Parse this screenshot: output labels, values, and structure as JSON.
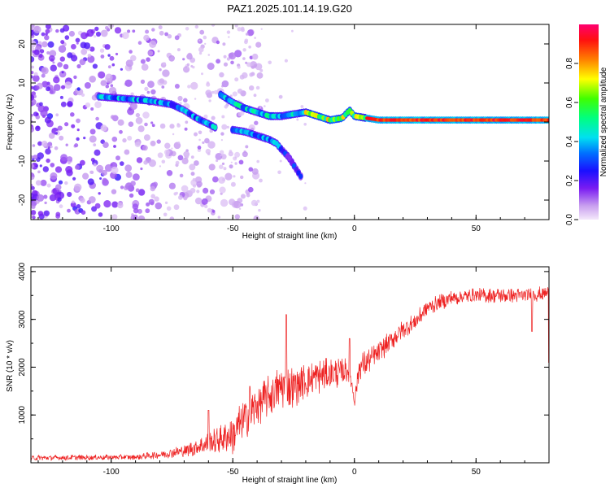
{
  "title": "PAZ1.2025.101.14.19.G20",
  "chart_data": [
    {
      "type": "heatmap",
      "xlabel": "Height of straight line (km)",
      "ylabel": "Frequency (Hz)",
      "xlim": [
        -133,
        80
      ],
      "ylim": [
        -25,
        25
      ],
      "xticks": [
        "-100",
        "-50",
        "0",
        "50"
      ],
      "xtick_values": [
        -100,
        -50,
        0,
        50
      ],
      "yticks": [
        "20",
        "10",
        "0",
        "-10",
        "-20"
      ],
      "ytick_values": [
        20,
        10,
        0,
        -10,
        -20
      ],
      "colorbar": {
        "label": "Normalized spectral amplitude",
        "range": [
          0,
          1
        ],
        "ticks": [
          "0.0",
          "0.2",
          "0.4",
          "0.6",
          "0.8"
        ],
        "tick_values": [
          0.0,
          0.2,
          0.4,
          0.6,
          0.8
        ]
      },
      "tracks": [
        {
          "x": [
            -105,
            -95,
            -85,
            -80,
            -75,
            -70,
            -65,
            -60,
            -57
          ],
          "y": [
            6.5,
            6,
            5.5,
            5,
            4.5,
            3,
            1,
            -0.5,
            -1.5
          ]
        },
        {
          "x": [
            -55,
            -50,
            -45,
            -40,
            -35,
            -30,
            -25,
            -20,
            -15,
            -10,
            -5,
            -2,
            0,
            5,
            10,
            20,
            30,
            40,
            50,
            60,
            70,
            80
          ],
          "y": [
            7,
            5,
            3.5,
            2.5,
            1.5,
            1.5,
            2,
            2.5,
            1.5,
            0.5,
            1,
            3,
            1.5,
            1,
            0.5,
            0.5,
            0.5,
            0.5,
            0.5,
            0.5,
            0.5,
            0.5
          ]
        },
        {
          "x": [
            -50,
            -45,
            -40,
            -35,
            -32,
            -30,
            -27,
            -25,
            -22
          ],
          "y": [
            -2,
            -2.5,
            -3.5,
            -4.5,
            -5.5,
            -7,
            -9,
            -11,
            -14
          ]
        }
      ]
    },
    {
      "type": "line",
      "xlabel": "Height of straight line (km)",
      "ylabel": "SNR (10 * v/v)",
      "xlim": [
        -133,
        80
      ],
      "ylim": [
        0,
        4100
      ],
      "xticks": [
        "-100",
        "-50",
        "0",
        "50"
      ],
      "xtick_values": [
        -100,
        -50,
        0,
        50
      ],
      "yticks": [
        "1000",
        "2000",
        "3000",
        "4000"
      ],
      "ytick_values": [
        1000,
        2000,
        3000,
        4000
      ],
      "trend_x": [
        -133,
        -90,
        -80,
        -70,
        -60,
        -55,
        -50,
        -45,
        -40,
        -35,
        -30,
        -25,
        -20,
        -15,
        -10,
        -5,
        -2,
        0,
        2,
        5,
        10,
        15,
        20,
        25,
        30,
        35,
        40,
        50,
        60,
        70,
        80
      ],
      "trend_y": [
        100,
        120,
        170,
        250,
        400,
        500,
        600,
        900,
        1200,
        1400,
        1600,
        1600,
        1700,
        1800,
        1850,
        1900,
        1950,
        1300,
        2000,
        2100,
        2300,
        2550,
        2800,
        2950,
        3250,
        3350,
        3450,
        3500,
        3500,
        3500,
        3550
      ],
      "noise": [
        60,
        60,
        90,
        130,
        250,
        300,
        450,
        500,
        450,
        450,
        500,
        450,
        400,
        380,
        350,
        300,
        250,
        150,
        300,
        280,
        250,
        230,
        200,
        200,
        180,
        170,
        170,
        160,
        160,
        160,
        160
      ],
      "spikes": [
        {
          "x": -28,
          "y": 3100
        },
        {
          "x": -60,
          "y": 1100
        },
        {
          "x": -43,
          "y": 1600
        },
        {
          "x": -2,
          "y": 2600
        },
        {
          "x": 73,
          "y": 2750
        },
        {
          "x": 80,
          "y": 2100
        }
      ],
      "line_color": "#ee2222"
    }
  ]
}
